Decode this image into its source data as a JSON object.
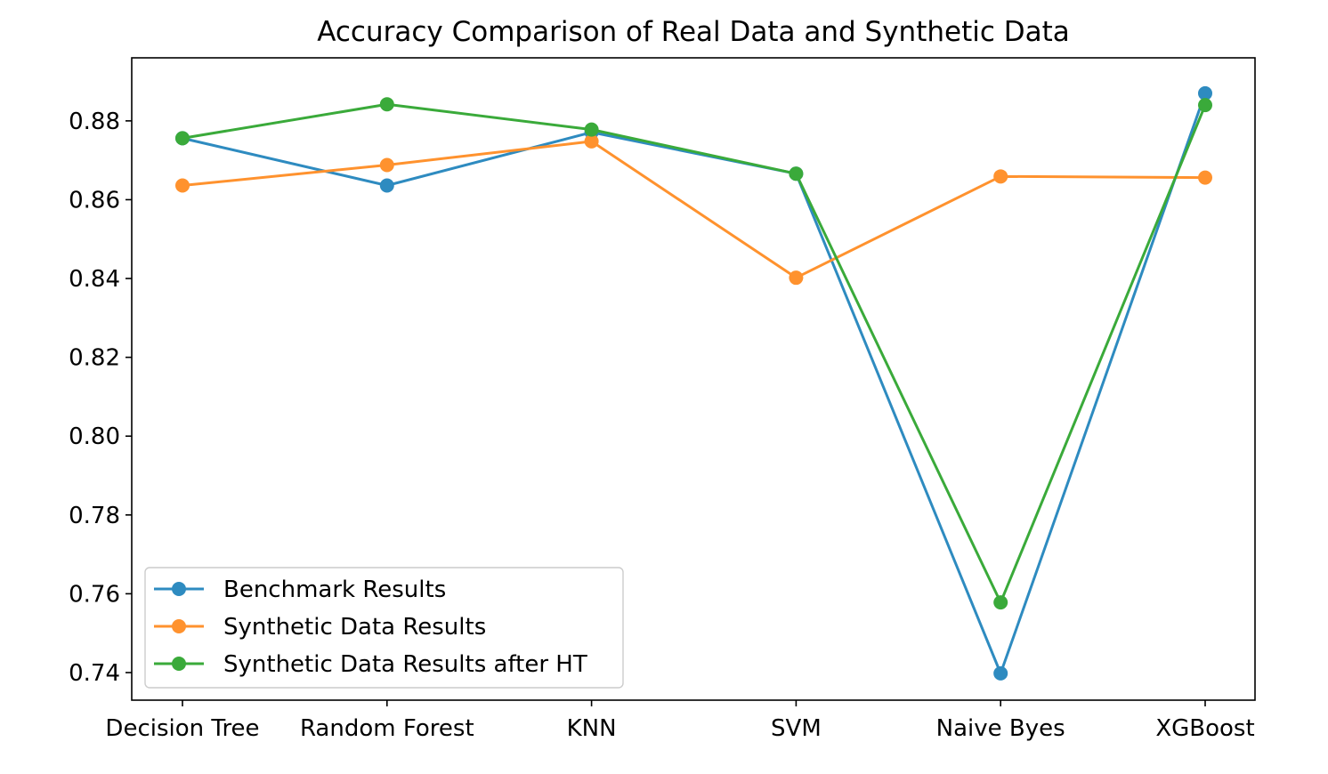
{
  "chart_data": {
    "type": "line",
    "title": "Accuracy Comparison of Real Data and Synthetic Data",
    "xlabel": "",
    "ylabel": "",
    "categories": [
      "Decision Tree",
      "Random Forest",
      "KNN",
      "SVM",
      "Naive Byes",
      "XGBoost"
    ],
    "ylim": [
      0.733,
      0.896
    ],
    "yticks": [
      0.74,
      0.76,
      0.78,
      0.8,
      0.82,
      0.84,
      0.86,
      0.88
    ],
    "ytick_labels": [
      "0.74",
      "0.76",
      "0.78",
      "0.80",
      "0.82",
      "0.84",
      "0.86",
      "0.88"
    ],
    "grid": false,
    "legend_position": "lower-left",
    "series": [
      {
        "name": "Benchmark Results",
        "color": "#2e8bc0",
        "values": [
          0.8756,
          0.8636,
          0.8771,
          0.8666,
          0.7398,
          0.887
        ]
      },
      {
        "name": "Synthetic Data Results",
        "color": "#ff922e",
        "values": [
          0.8636,
          0.8688,
          0.8748,
          0.8402,
          0.8659,
          0.8656
        ]
      },
      {
        "name": "Synthetic Data Results after HT",
        "color": "#3aaa3a",
        "values": [
          0.8756,
          0.8842,
          0.8778,
          0.8666,
          0.7578,
          0.884
        ]
      }
    ]
  }
}
